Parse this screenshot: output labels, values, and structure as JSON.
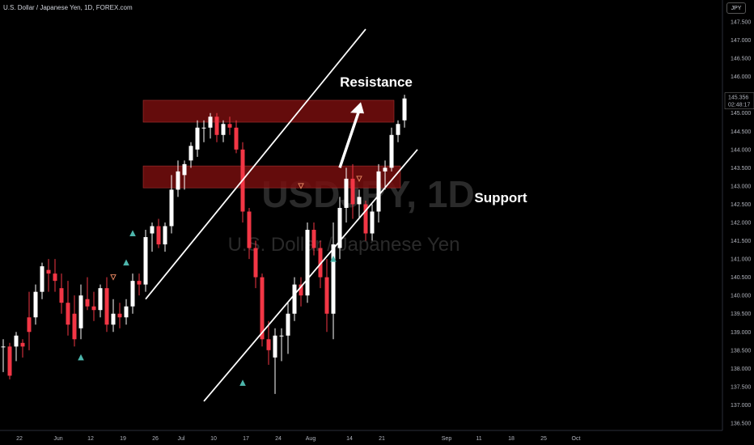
{
  "header": {
    "symbol_info": "U.S. Dollar / Japanese Yen, 1D, FOREX.com"
  },
  "currency_button": "JPY",
  "watermark": {
    "symbol": "USDJPY, 1D",
    "name": "U.S. Dollar / Japanese Yen"
  },
  "colors": {
    "up": "#ffffff",
    "down": "#f23645",
    "zone": "#7a0f0f",
    "background": "#000000",
    "marker_up": "#4db6ac",
    "marker_down": "#e0825d"
  },
  "annotations": {
    "resistance": "Resistance",
    "support": "Support"
  },
  "price_label": {
    "price": "145.356",
    "countdown": "02:48:17"
  },
  "chart_data": {
    "type": "candlestick",
    "title": "U.S. Dollar / Japanese Yen, 1D, FOREX.com",
    "ylim": [
      136.3,
      147.8
    ],
    "y_ticks": [
      136.5,
      137.0,
      137.5,
      138.0,
      138.5,
      139.0,
      139.5,
      140.0,
      140.5,
      141.0,
      141.5,
      142.0,
      142.5,
      143.0,
      143.5,
      144.0,
      144.5,
      145.0,
      145.5,
      146.0,
      146.5,
      147.0,
      147.5
    ],
    "y_tick_labels": [
      "136.500",
      "137.000",
      "137.500",
      "138.000",
      "138.500",
      "139.000",
      "139.500",
      "140.000",
      "140.500",
      "141.000",
      "141.500",
      "142.000",
      "142.500",
      "143.000",
      "143.500",
      "144.000",
      "144.500",
      "145.000",
      "145.500",
      "146.000",
      "146.500",
      "147.000",
      "147.500"
    ],
    "x_ticks": [
      {
        "i": 2,
        "label": "22"
      },
      {
        "i": 8,
        "label": "Jun"
      },
      {
        "i": 13,
        "label": "12"
      },
      {
        "i": 18,
        "label": "19"
      },
      {
        "i": 23,
        "label": "26"
      },
      {
        "i": 27,
        "label": "Jul"
      },
      {
        "i": 32,
        "label": "10"
      },
      {
        "i": 37,
        "label": "17"
      },
      {
        "i": 42,
        "label": "24"
      },
      {
        "i": 47,
        "label": "Aug"
      },
      {
        "i": 53,
        "label": "14"
      },
      {
        "i": 58,
        "label": "21"
      },
      {
        "i": 68,
        "label": "Sep"
      },
      {
        "i": 73,
        "label": "11"
      },
      {
        "i": 78,
        "label": "18"
      },
      {
        "i": 83,
        "label": "25"
      },
      {
        "i": 88,
        "label": "Oct"
      }
    ],
    "candles": [
      {
        "o": 138.6,
        "h": 138.8,
        "l": 137.9,
        "c": 138.6
      },
      {
        "o": 138.6,
        "h": 138.7,
        "l": 137.7,
        "c": 137.8
      },
      {
        "o": 138.6,
        "h": 139.0,
        "l": 138.2,
        "c": 138.9
      },
      {
        "o": 138.7,
        "h": 138.8,
        "l": 138.3,
        "c": 138.6
      },
      {
        "o": 139.4,
        "h": 140.1,
        "l": 138.5,
        "c": 139.0
      },
      {
        "o": 139.4,
        "h": 140.3,
        "l": 139.2,
        "c": 140.1
      },
      {
        "o": 140.1,
        "h": 140.9,
        "l": 139.9,
        "c": 140.8
      },
      {
        "o": 140.7,
        "h": 141.0,
        "l": 140.1,
        "c": 140.6
      },
      {
        "o": 140.6,
        "h": 141.0,
        "l": 140.1,
        "c": 140.4
      },
      {
        "o": 140.2,
        "h": 140.6,
        "l": 139.5,
        "c": 139.8
      },
      {
        "o": 139.8,
        "h": 140.4,
        "l": 138.9,
        "c": 139.2
      },
      {
        "o": 139.5,
        "h": 140.0,
        "l": 138.6,
        "c": 138.8
      },
      {
        "o": 139.1,
        "h": 140.3,
        "l": 138.8,
        "c": 140.0
      },
      {
        "o": 139.9,
        "h": 140.5,
        "l": 139.6,
        "c": 139.7
      },
      {
        "o": 139.7,
        "h": 140.1,
        "l": 139.3,
        "c": 139.6
      },
      {
        "o": 139.6,
        "h": 140.3,
        "l": 139.4,
        "c": 140.2
      },
      {
        "o": 140.2,
        "h": 140.5,
        "l": 139.0,
        "c": 139.2
      },
      {
        "o": 139.2,
        "h": 139.9,
        "l": 139.0,
        "c": 139.5
      },
      {
        "o": 139.5,
        "h": 139.8,
        "l": 139.1,
        "c": 139.4
      },
      {
        "o": 139.4,
        "h": 139.9,
        "l": 139.2,
        "c": 139.7
      },
      {
        "o": 139.7,
        "h": 140.6,
        "l": 139.5,
        "c": 140.4
      },
      {
        "o": 140.4,
        "h": 140.6,
        "l": 140.0,
        "c": 140.3
      },
      {
        "o": 140.3,
        "h": 141.8,
        "l": 140.1,
        "c": 141.6
      },
      {
        "o": 141.7,
        "h": 142.0,
        "l": 141.2,
        "c": 141.9
      },
      {
        "o": 141.9,
        "h": 142.1,
        "l": 141.3,
        "c": 141.4
      },
      {
        "o": 141.4,
        "h": 142.0,
        "l": 141.2,
        "c": 141.9
      },
      {
        "o": 141.9,
        "h": 143.3,
        "l": 141.7,
        "c": 142.9
      },
      {
        "o": 142.9,
        "h": 143.7,
        "l": 142.7,
        "c": 143.4
      },
      {
        "o": 143.3,
        "h": 143.7,
        "l": 142.9,
        "c": 143.6
      },
      {
        "o": 143.7,
        "h": 144.2,
        "l": 143.5,
        "c": 144.1
      },
      {
        "o": 144.0,
        "h": 144.8,
        "l": 143.8,
        "c": 144.6
      },
      {
        "o": 144.6,
        "h": 144.8,
        "l": 144.2,
        "c": 144.6
      },
      {
        "o": 144.6,
        "h": 145.0,
        "l": 144.3,
        "c": 144.9
      },
      {
        "o": 144.9,
        "h": 145.0,
        "l": 144.2,
        "c": 144.4
      },
      {
        "o": 144.4,
        "h": 144.8,
        "l": 144.2,
        "c": 144.7
      },
      {
        "o": 144.7,
        "h": 144.9,
        "l": 144.4,
        "c": 144.6
      },
      {
        "o": 144.6,
        "h": 144.8,
        "l": 143.9,
        "c": 144.0
      },
      {
        "o": 144.0,
        "h": 144.2,
        "l": 142.0,
        "c": 142.3
      },
      {
        "o": 142.3,
        "h": 142.4,
        "l": 141.0,
        "c": 141.3
      },
      {
        "o": 141.3,
        "h": 141.5,
        "l": 140.2,
        "c": 140.5
      },
      {
        "o": 140.5,
        "h": 140.6,
        "l": 138.6,
        "c": 138.8
      },
      {
        "o": 138.8,
        "h": 139.3,
        "l": 138.1,
        "c": 138.5
      },
      {
        "o": 138.3,
        "h": 139.1,
        "l": 137.3,
        "c": 138.9
      },
      {
        "o": 138.9,
        "h": 139.1,
        "l": 138.2,
        "c": 138.9
      },
      {
        "o": 138.9,
        "h": 139.8,
        "l": 138.4,
        "c": 139.5
      },
      {
        "o": 139.5,
        "h": 140.5,
        "l": 139.3,
        "c": 140.3
      },
      {
        "o": 140.3,
        "h": 140.5,
        "l": 139.7,
        "c": 140.0
      },
      {
        "o": 140.0,
        "h": 142.0,
        "l": 139.8,
        "c": 141.8
      },
      {
        "o": 141.8,
        "h": 142.0,
        "l": 141.1,
        "c": 141.3
      },
      {
        "o": 141.3,
        "h": 141.5,
        "l": 140.2,
        "c": 140.5
      },
      {
        "o": 140.5,
        "h": 141.0,
        "l": 139.0,
        "c": 139.5
      },
      {
        "o": 139.5,
        "h": 142.0,
        "l": 138.8,
        "c": 141.4
      },
      {
        "o": 141.3,
        "h": 142.7,
        "l": 141.0,
        "c": 142.4
      },
      {
        "o": 142.4,
        "h": 143.5,
        "l": 142.0,
        "c": 143.2
      },
      {
        "o": 143.2,
        "h": 143.6,
        "l": 142.1,
        "c": 142.5
      },
      {
        "o": 142.5,
        "h": 142.9,
        "l": 142.1,
        "c": 142.7
      },
      {
        "o": 142.5,
        "h": 142.6,
        "l": 141.5,
        "c": 141.7
      },
      {
        "o": 141.7,
        "h": 142.5,
        "l": 141.5,
        "c": 142.3
      },
      {
        "o": 142.3,
        "h": 143.6,
        "l": 142.0,
        "c": 143.4
      },
      {
        "o": 143.4,
        "h": 143.7,
        "l": 142.9,
        "c": 143.5
      },
      {
        "o": 143.5,
        "h": 144.6,
        "l": 143.4,
        "c": 144.4
      },
      {
        "o": 144.4,
        "h": 144.8,
        "l": 144.2,
        "c": 144.7
      },
      {
        "o": 144.8,
        "h": 145.5,
        "l": 144.6,
        "c": 145.4
      }
    ],
    "markers": [
      {
        "i": 12,
        "price": 138.3,
        "dir": "up"
      },
      {
        "i": 17,
        "price": 140.5,
        "dir": "down"
      },
      {
        "i": 19,
        "price": 140.9,
        "dir": "up"
      },
      {
        "i": 20,
        "price": 141.7,
        "dir": "up"
      },
      {
        "i": 37,
        "price": 137.6,
        "dir": "up"
      },
      {
        "i": 46,
        "price": 143.0,
        "dir": "down"
      },
      {
        "i": 51,
        "price": 141.0,
        "dir": "up"
      },
      {
        "i": 55,
        "price": 143.2,
        "dir": "down"
      }
    ],
    "zones": [
      {
        "name": "resistance-zone",
        "from_i": 22,
        "to_i": 60,
        "top": 145.35,
        "bottom": 144.75
      },
      {
        "name": "support-zone",
        "from_i": 22,
        "to_i": 61,
        "top": 143.55,
        "bottom": 142.95
      }
    ],
    "channel_lines": [
      {
        "name": "upper-channel-line",
        "i1": 22,
        "p1": 139.9,
        "i2": 56,
        "p2": 147.3
      },
      {
        "name": "lower-channel-line",
        "i1": 31,
        "p1": 137.1,
        "i2": 64,
        "p2": 144.0
      }
    ],
    "arrow": {
      "from_i": 51,
      "from_p": 143.5,
      "to_i": 54,
      "to_p": 145.3
    }
  }
}
